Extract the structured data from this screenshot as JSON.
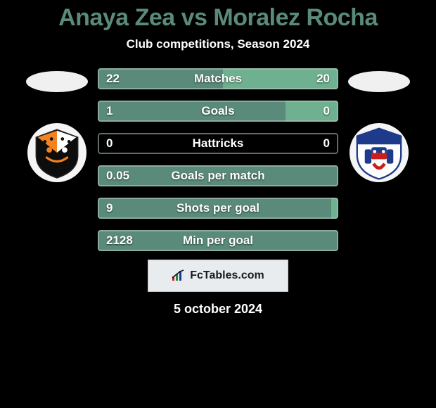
{
  "title": "Anaya Zea vs Moralez Rocha",
  "subtitle": "Club competitions, Season 2024",
  "footer_date": "5 october 2024",
  "brand_text": "FcTables.com",
  "colors": {
    "title_color": "#5a8a7a",
    "bar_left_fill": "#5a8a7a",
    "bar_right_fill": "#6fb090",
    "bar_border": "rgba(180,200,190,0.55)",
    "text": "#ffffff",
    "background": "#000000",
    "footer_panel_bg": "#e9ecef",
    "footer_panel_border": "#bfc5c9"
  },
  "stats": [
    {
      "label": "Matches",
      "left_value": "22",
      "right_value": "20",
      "left_pct": 52,
      "right_pct": 48
    },
    {
      "label": "Goals",
      "left_value": "1",
      "right_value": "0",
      "left_pct": 78,
      "right_pct": 22
    },
    {
      "label": "Hattricks",
      "left_value": "0",
      "right_value": "0",
      "left_pct": 0,
      "right_pct": 0
    },
    {
      "label": "Goals per match",
      "left_value": "0.05",
      "right_value": "",
      "left_pct": 100,
      "right_pct": 0
    },
    {
      "label": "Shots per goal",
      "left_value": "9",
      "right_value": "",
      "left_pct": 97,
      "right_pct": 3
    },
    {
      "label": "Min per goal",
      "left_value": "2128",
      "right_value": "",
      "left_pct": 100,
      "right_pct": 0
    }
  ],
  "logos": {
    "left": {
      "name": "jaguares-logo",
      "shield_fill": "#0d0d0d",
      "accent": "#f58220",
      "outline": "#f58220"
    },
    "right": {
      "name": "fortaleza-logo",
      "shield_fill": "#ffffff",
      "blue": "#1e3a8a",
      "red": "#c81e1e"
    }
  }
}
